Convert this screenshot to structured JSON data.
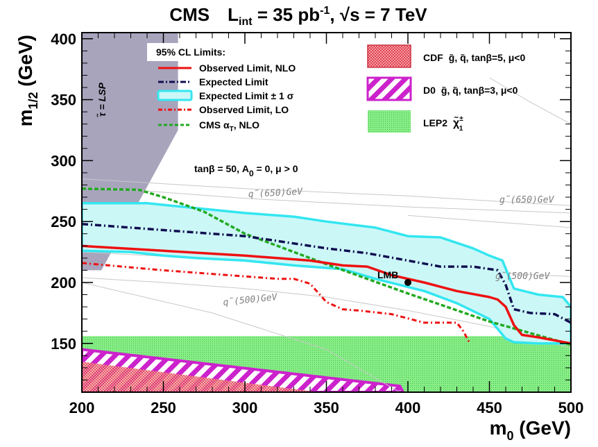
{
  "title": {
    "experiment": "CMS",
    "lumi_text": "L",
    "lumi_sub": "int",
    "lumi_value": " = 35 pb",
    "lumi_exp": "-1",
    "energy_text": ", √s = 7 TeV"
  },
  "axes": {
    "x_label": "m",
    "x_sub": "0",
    "x_unit": " (GeV)",
    "y_label": "m",
    "y_sub": "1/2",
    "y_unit": " (GeV)"
  },
  "colors": {
    "observed_nlo": "#ee1111",
    "expected": "#101050",
    "expected_band_fill": "#ccf7f7",
    "expected_band_edge": "#33e6f0",
    "observed_lo": "#ee1111",
    "cms_alphat": "#22aa22",
    "stau_region": "#a8a4bc",
    "lep2": "#88ee88",
    "d0": "#cc22cc",
    "cdf": "#ee6677",
    "contour": "#c8c8c8"
  },
  "legend_left": {
    "header": "95% CL Limits:",
    "entries": [
      {
        "label": "Observed Limit, NLO",
        "style": "solid-red"
      },
      {
        "label": "Expected Limit",
        "style": "dashdot-navy"
      },
      {
        "label": "Expected Limit ± 1 σ",
        "style": "band-cyan"
      },
      {
        "label": "Observed Limit, LO",
        "style": "dashdot-red"
      },
      {
        "label": "CMS α",
        "sub": "T",
        "suffix": ", NLO",
        "style": "dashed-green"
      }
    ]
  },
  "legend_right": {
    "entries": [
      {
        "label": "CDF",
        "detail": "g̃, q̃, tanβ=5, μ<0",
        "style": "cdf-hatch"
      },
      {
        "label": "D0",
        "detail": "g̃, q̃, tanβ=3, μ<0",
        "style": "d0-hatch"
      },
      {
        "label": "LEP2",
        "detail": "χ̃",
        "detail_sup": "±",
        "detail_sub": "1",
        "style": "lep2-fill"
      }
    ]
  },
  "annotations": {
    "params": "tanβ = 50, A",
    "params_sub": "0",
    "params_rest": " = 0, μ > 0",
    "stau": "τ̃ = LSP",
    "lmb": "LMB",
    "contours": [
      "q̃(650)GeV",
      "g̃(650)GeV",
      "q̃(500)GeV",
      "g̃(500)GeV"
    ]
  },
  "chart_data": {
    "type": "line",
    "xlim": [
      200,
      500
    ],
    "ylim": [
      110,
      405
    ],
    "x_ticks": [
      200,
      250,
      300,
      350,
      400,
      450,
      500
    ],
    "y_ticks": [
      150,
      200,
      250,
      300,
      350,
      400
    ],
    "series": [
      {
        "name": "Observed Limit, NLO",
        "x": [
          200,
          250,
          300,
          340,
          360,
          375,
          390,
          410,
          430,
          450,
          455,
          460,
          465,
          470,
          480,
          500
        ],
        "y": [
          230,
          226,
          222,
          218,
          214,
          213,
          206,
          200,
          193,
          188,
          186,
          180,
          165,
          157,
          155,
          150
        ]
      },
      {
        "name": "Expected Limit",
        "x": [
          200,
          250,
          300,
          350,
          375,
          400,
          420,
          440,
          455,
          460,
          465,
          475,
          490,
          500
        ],
        "y": [
          248,
          243,
          238,
          228,
          224,
          218,
          213,
          213,
          210,
          198,
          178,
          175,
          174,
          167
        ]
      },
      {
        "name": "Observed Limit, LO",
        "x": [
          200,
          250,
          300,
          320,
          330,
          340,
          350,
          360,
          370,
          390,
          410,
          425,
          430,
          434,
          438
        ],
        "y": [
          216,
          210,
          205,
          203,
          203,
          199,
          184,
          178,
          177,
          174,
          167,
          167,
          167,
          160,
          150
        ]
      },
      {
        "name": "CMS αT, NLO",
        "x": [
          200,
          235,
          250,
          275,
          300,
          350,
          400,
          450,
          500
        ],
        "y": [
          277,
          276,
          270,
          258,
          240,
          215,
          191,
          168,
          149
        ]
      }
    ],
    "band": {
      "name": "Expected Limit ± 1 σ",
      "upper": {
        "x": [
          200,
          240,
          300,
          330,
          350,
          380,
          400,
          420,
          440,
          450,
          458,
          465,
          480,
          495,
          500
        ],
        "y": [
          265,
          265,
          257,
          254,
          250,
          245,
          238,
          237,
          228,
          222,
          218,
          195,
          190,
          188,
          180
        ]
      },
      "lower": {
        "x": [
          500,
          480,
          465,
          460,
          450,
          430,
          410,
          380,
          360,
          330,
          300,
          270,
          250,
          230,
          200
        ],
        "y": [
          150,
          150,
          151,
          154,
          170,
          183,
          193,
          203,
          211,
          214,
          218,
          220,
          222,
          225,
          226
        ]
      }
    },
    "point": {
      "name": "LMB",
      "x": 400,
      "y": 200
    },
    "regions": {
      "stau_lsp": {
        "x": [
          200,
          200,
          259,
          259,
          212
        ],
        "y": [
          210,
          405,
          405,
          325,
          210
        ]
      },
      "lep2": {
        "y_low": 110,
        "y_high": 156
      },
      "cdf": {
        "x": [
          200,
          200,
          345,
          200
        ],
        "y": [
          110,
          135,
          110,
          110
        ]
      },
      "d0": {
        "x": [
          200,
          200,
          395,
          397,
          200
        ],
        "y": [
          110,
          145,
          115,
          110,
          110
        ]
      }
    },
    "contours": [
      {
        "label": "q̃(650)GeV",
        "x": [
          200,
          230,
          300,
          400,
          500
        ],
        "y": [
          278,
          276,
          269,
          262,
          257
        ]
      },
      {
        "label": "g̃(650)GeV",
        "x": [
          200,
          300,
          400,
          500
        ],
        "y": [
          285,
          277,
          271,
          263
        ]
      },
      {
        "label": "q̃(500)GeV",
        "x": [
          200,
          250,
          300,
          350,
          400,
          450,
          500
        ],
        "y": [
          204,
          200,
          195,
          188,
          177,
          164,
          146
        ]
      },
      {
        "label": "g̃(500)GeV",
        "x": [
          200,
          300,
          400,
          450,
          500
        ],
        "y": [
          225,
          218,
          210,
          208,
          205
        ]
      },
      {
        "label": "",
        "x": [
          200,
          280,
          350,
          395
        ],
        "y": [
          200,
          175,
          145,
          110
        ]
      },
      {
        "label": "",
        "x": [
          450,
          475,
          500
        ],
        "y": [
          368,
          348,
          330
        ]
      },
      {
        "label": "",
        "x": [
          400,
          450,
          500
        ],
        "y": [
          255,
          250,
          245
        ]
      }
    ]
  }
}
